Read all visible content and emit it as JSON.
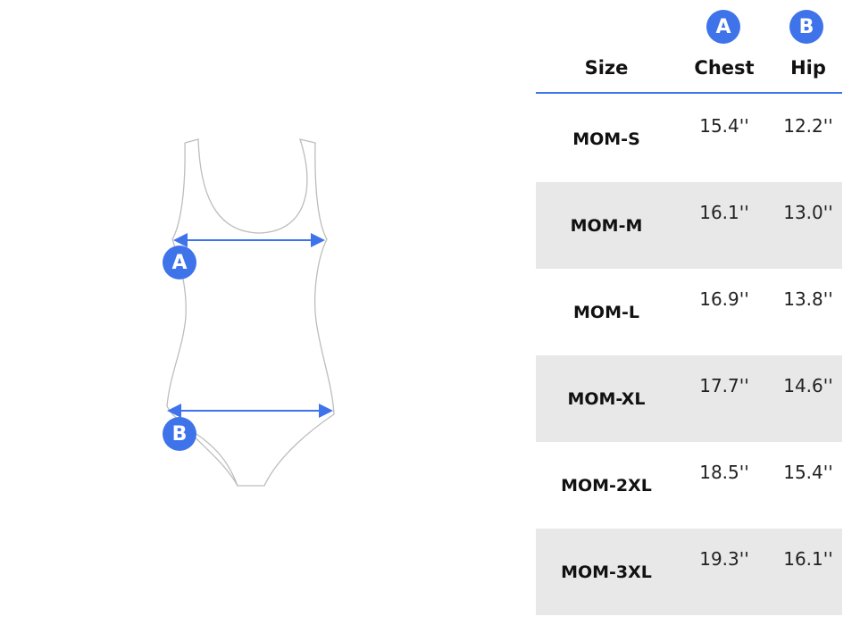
{
  "colors": {
    "accent": "#3e73ea",
    "row_alt": "#e8e8e8",
    "outline": "#bdbdbd"
  },
  "diagram": {
    "marker_a": "A",
    "marker_b": "B"
  },
  "table": {
    "headers": {
      "size": "Size",
      "chest": "Chest",
      "hip": "Hip",
      "chest_marker": "A",
      "hip_marker": "B"
    },
    "rows": [
      {
        "size": "MOM-S",
        "chest": "15.4''",
        "hip": "12.2''"
      },
      {
        "size": "MOM-M",
        "chest": "16.1''",
        "hip": "13.0''"
      },
      {
        "size": "MOM-L",
        "chest": "16.9''",
        "hip": "13.8''"
      },
      {
        "size": "MOM-XL",
        "chest": "17.7''",
        "hip": "14.6''"
      },
      {
        "size": "MOM-2XL",
        "chest": "18.5''",
        "hip": "15.4''"
      },
      {
        "size": "MOM-3XL",
        "chest": "19.3''",
        "hip": "16.1''"
      }
    ]
  }
}
